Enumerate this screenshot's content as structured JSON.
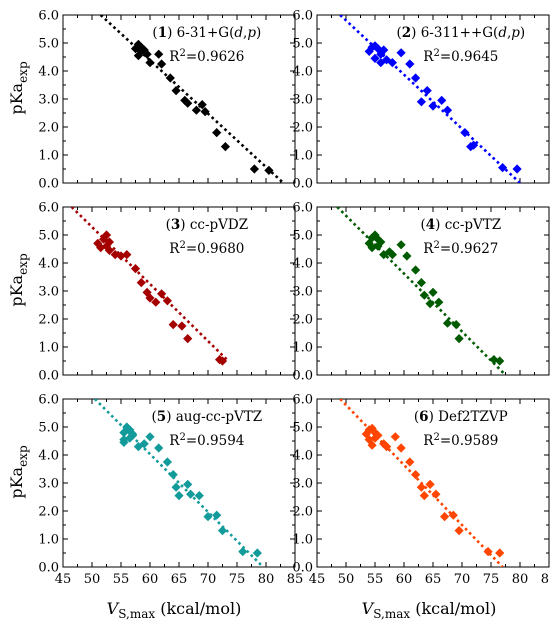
{
  "chart_data": [
    {
      "type": "scatter",
      "label_num": "1",
      "label_rest": " 6-31+G(",
      "label_italic1": "d",
      "label_comma": ",",
      "label_italic2": "p",
      "label_close": ")",
      "r2_base": "R",
      "r2_sup": "2",
      "r2_value": "=0.9626",
      "color": "#000000",
      "xlim": [
        45,
        85
      ],
      "ylim": [
        0.0,
        6.0
      ],
      "x": [
        57.5,
        58.0,
        58.5,
        59.0,
        58.0,
        59.5,
        58.5,
        60.0,
        61.5,
        62.0,
        63.5,
        64.5,
        66.0,
        66.5,
        68.0,
        69.0,
        69.5,
        71.5,
        73.0,
        78.0,
        80.5
      ],
      "y": [
        4.8,
        4.95,
        4.85,
        4.75,
        4.55,
        4.6,
        4.7,
        4.3,
        4.6,
        4.25,
        3.75,
        3.3,
        2.95,
        2.85,
        2.6,
        2.8,
        2.55,
        1.8,
        1.3,
        0.5,
        0.45
      ],
      "fit": {
        "x": [
          51.5,
          83
        ],
        "y": [
          6.0,
          0.0
        ]
      }
    },
    {
      "type": "scatter",
      "label_num": "2",
      "label_rest": " 6-311++G(",
      "label_italic1": "d",
      "label_comma": ",",
      "label_italic2": "p",
      "label_close": ")",
      "r2_base": "R",
      "r2_sup": "2",
      "r2_value": "=0.9645",
      "color": "#0000ff",
      "xlim": [
        45,
        85
      ],
      "ylim": [
        0.0,
        6.0
      ],
      "x": [
        54.0,
        54.5,
        55.0,
        55.5,
        56.0,
        56.5,
        55.0,
        56.0,
        57.0,
        58.0,
        59.5,
        61.0,
        62.0,
        63.0,
        64.0,
        65.0,
        66.5,
        67.5,
        70.5,
        71.5,
        72.0,
        77.0,
        79.5
      ],
      "y": [
        4.7,
        4.85,
        4.9,
        4.8,
        4.6,
        4.75,
        4.45,
        4.3,
        4.4,
        4.3,
        4.65,
        4.25,
        3.75,
        2.9,
        3.3,
        2.75,
        2.95,
        2.6,
        1.8,
        1.3,
        1.35,
        0.55,
        0.5
      ],
      "fit": {
        "x": [
          49,
          80
        ],
        "y": [
          6.0,
          0.0
        ]
      }
    },
    {
      "type": "scatter",
      "label_num": "3",
      "label_rest": " cc-pVDZ",
      "label_italic1": "",
      "label_comma": "",
      "label_italic2": "",
      "label_close": "",
      "r2_base": "R",
      "r2_sup": "2",
      "r2_value": "=0.9680",
      "color": "#a50000",
      "xlim": [
        45,
        85
      ],
      "ylim": [
        0.0,
        6.0
      ],
      "x": [
        51.0,
        51.5,
        52.0,
        52.5,
        53.0,
        53.0,
        52.5,
        54.0,
        55.0,
        56.0,
        57.5,
        58.5,
        59.5,
        60.0,
        61.0,
        62.0,
        63.0,
        64.0,
        65.5,
        66.5,
        72.0,
        72.5
      ],
      "y": [
        4.7,
        4.55,
        4.85,
        5.0,
        4.75,
        4.45,
        4.6,
        4.3,
        4.25,
        4.3,
        3.8,
        3.3,
        2.95,
        2.75,
        2.6,
        2.9,
        2.65,
        1.8,
        1.75,
        1.3,
        0.55,
        0.5
      ],
      "fit": {
        "x": [
          46.5,
          73.5
        ],
        "y": [
          6.0,
          0.5
        ]
      }
    },
    {
      "type": "scatter",
      "label_num": "4",
      "label_rest": " cc-pVTZ",
      "label_italic1": "",
      "label_comma": "",
      "label_italic2": "",
      "label_close": "",
      "r2_base": "R",
      "r2_sup": "2",
      "r2_value": "=0.9627",
      "color": "#005a00",
      "xlim": [
        45,
        85
      ],
      "ylim": [
        0.0,
        6.0
      ],
      "x": [
        54.0,
        54.5,
        55.0,
        55.5,
        54.5,
        55.5,
        56.0,
        56.5,
        57.5,
        58.0,
        59.5,
        60.5,
        62.0,
        63.0,
        63.5,
        64.5,
        65.0,
        66.0,
        67.5,
        69.0,
        69.5,
        75.5,
        76.5
      ],
      "y": [
        4.7,
        4.9,
        5.0,
        4.85,
        4.55,
        4.6,
        4.75,
        4.3,
        4.4,
        4.3,
        4.65,
        4.25,
        3.75,
        3.3,
        2.85,
        2.55,
        2.95,
        2.6,
        1.85,
        1.8,
        1.3,
        0.55,
        0.5
      ],
      "fit": {
        "x": [
          48.5,
          77.5
        ],
        "y": [
          6.0,
          0.0
        ]
      }
    },
    {
      "type": "scatter",
      "label_num": "5",
      "label_rest": " aug-cc-pVTZ",
      "label_italic1": "",
      "label_comma": "",
      "label_italic2": "",
      "label_close": "",
      "r2_base": "R",
      "r2_sup": "2",
      "r2_value": "=0.9594",
      "color": "#139b9b",
      "xlim": [
        45,
        85
      ],
      "ylim": [
        0.0,
        6.0
      ],
      "x": [
        55.5,
        56.0,
        56.5,
        57.0,
        55.5,
        56.5,
        57.0,
        55.5,
        58.0,
        59.0,
        60.0,
        61.5,
        63.0,
        64.0,
        64.5,
        65.0,
        66.5,
        67.0,
        68.5,
        70.0,
        71.5,
        72.5,
        76.0,
        78.5
      ],
      "y": [
        4.8,
        5.0,
        4.9,
        4.75,
        4.55,
        4.6,
        4.7,
        4.45,
        4.3,
        4.4,
        4.65,
        4.25,
        3.75,
        3.3,
        2.85,
        2.55,
        2.95,
        2.6,
        2.55,
        1.8,
        1.85,
        1.3,
        0.55,
        0.5
      ],
      "fit": {
        "x": [
          50.5,
          79.5
        ],
        "y": [
          6.0,
          0.0
        ]
      }
    },
    {
      "type": "scatter",
      "label_num": "6",
      "label_rest": " Def2TZVP",
      "label_italic1": "",
      "label_comma": "",
      "label_italic2": "",
      "label_close": "",
      "r2_base": "R",
      "r2_sup": "2",
      "r2_value": "=0.9589",
      "color": "#ff4500",
      "xlim": [
        45,
        85
      ],
      "ylim": [
        0.0,
        6.0
      ],
      "x": [
        53.5,
        54.0,
        54.5,
        55.0,
        54.0,
        55.0,
        55.5,
        54.5,
        56.5,
        57.0,
        58.5,
        59.5,
        61.0,
        62.0,
        63.0,
        63.5,
        64.5,
        65.5,
        67.0,
        68.5,
        69.5,
        74.5,
        76.5
      ],
      "y": [
        4.75,
        4.9,
        4.95,
        4.8,
        4.55,
        4.6,
        4.7,
        4.35,
        4.4,
        4.3,
        4.65,
        4.25,
        3.75,
        3.3,
        2.85,
        2.55,
        2.95,
        2.6,
        1.8,
        1.85,
        1.3,
        0.55,
        0.5
      ],
      "fit": {
        "x": [
          49,
          77
        ],
        "y": [
          6.0,
          0.0
        ]
      }
    }
  ],
  "axes": {
    "xticks": [
      "45",
      "50",
      "55",
      "60",
      "65",
      "70",
      "75",
      "80",
      "85"
    ],
    "yticks": [
      "0.0",
      "1.0",
      "2.0",
      "3.0",
      "4.0",
      "5.0",
      "6.0"
    ],
    "xlabel_main": "V",
    "xlabel_sub": "S,max",
    "xlabel_unit": " (kcal/mol)",
    "ylabel_main": "pKa",
    "ylabel_sub": "exp"
  }
}
